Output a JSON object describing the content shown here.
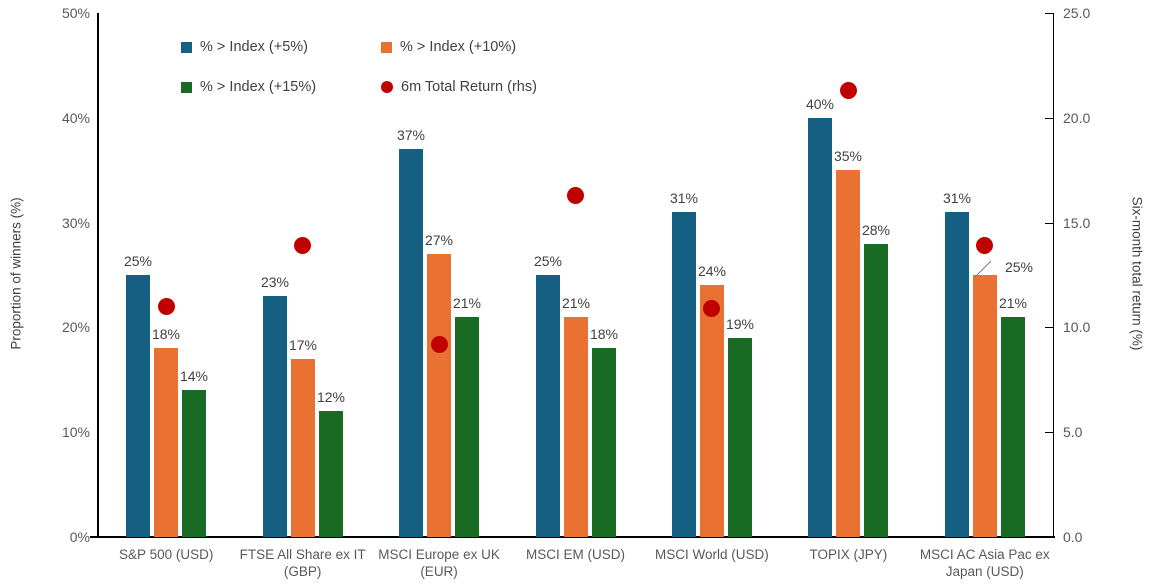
{
  "chart_data": {
    "type": "bar",
    "title": "",
    "categories": [
      "S&P 500 (USD)",
      "FTSE All Share ex IT\n(GBP)",
      "MSCI Europe ex UK\n(EUR)",
      "MSCI EM (USD)",
      "MSCI World (USD)",
      "TOPIX (JPY)",
      "MSCI AC Asia Pac ex\nJapan (USD)"
    ],
    "series": [
      {
        "name": "% > Index (+5%)",
        "type": "bar",
        "axis": "left",
        "color": "#156082",
        "values": [
          25,
          23,
          37,
          25,
          31,
          40,
          31
        ],
        "data_labels": [
          "25%",
          "23%",
          "37%",
          "25%",
          "31%",
          "40%",
          "31%"
        ]
      },
      {
        "name": "% > Index (+10%)",
        "type": "bar",
        "axis": "left",
        "color": "#E97132",
        "values": [
          18,
          17,
          27,
          21,
          24,
          35,
          25
        ],
        "data_labels": [
          "18%",
          "17%",
          "27%",
          "21%",
          "24%",
          "35%",
          "25%"
        ]
      },
      {
        "name": "% > Index (+15%)",
        "type": "bar",
        "axis": "left",
        "color": "#196B24",
        "values": [
          14,
          12,
          21,
          18,
          19,
          28,
          21
        ],
        "data_labels": [
          "14%",
          "12%",
          "21%",
          "18%",
          "19%",
          "28%",
          "21%"
        ]
      },
      {
        "name": "6m Total Return (rhs)",
        "type": "scatter",
        "axis": "right",
        "color": "#C00000",
        "values": [
          11.0,
          13.9,
          9.2,
          16.3,
          10.9,
          21.3,
          13.9
        ]
      }
    ],
    "left_axis": {
      "label": "Proportion of winners (%)",
      "min": 0,
      "max": 50,
      "ticks": [
        "0%",
        "10%",
        "20%",
        "30%",
        "40%",
        "50%"
      ],
      "tick_values": [
        0,
        10,
        20,
        30,
        40,
        50
      ]
    },
    "right_axis": {
      "label": "Six-month total return (%)",
      "min": 0,
      "max": 25,
      "ticks": [
        "0.0",
        "5.0",
        "10.0",
        "15.0",
        "20.0",
        "25.0"
      ],
      "tick_values": [
        0,
        5,
        10,
        15,
        20,
        25
      ]
    },
    "legend_position": "top",
    "grid": false,
    "background": "#ffffff",
    "colors": {
      "bar_5pct": "#156082",
      "bar_10pct": "#E97132",
      "bar_15pct": "#196B24",
      "return_dot": "#C00000"
    }
  }
}
